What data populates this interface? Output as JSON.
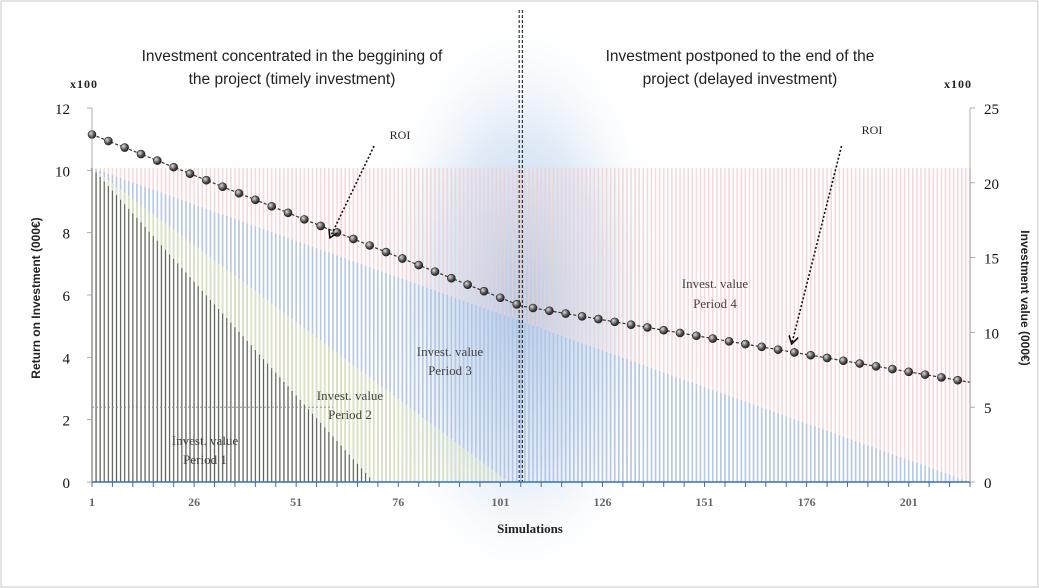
{
  "chart_data": {
    "type": "bar",
    "headings": {
      "left": [
        "Investment concentrated in the beggining of",
        "the project (timely investment)"
      ],
      "right": [
        "Investment postponed to the end of the",
        "project (delayed investment)"
      ]
    },
    "xlabel": "Simulations",
    "ylabel_left": "Return on Investment (000€)",
    "ylabel_right": "Investment value (000€)",
    "multiplier_left": "x100",
    "multiplier_right": "x100",
    "x_ticks": [
      1,
      26,
      51,
      76,
      101,
      126,
      151,
      176,
      201
    ],
    "xlim": [
      1,
      216
    ],
    "y_left_ticks": [
      0,
      2,
      4,
      6,
      8,
      10,
      12
    ],
    "y_left_range": [
      0,
      12
    ],
    "y_right_ticks": [
      0,
      5,
      10,
      15,
      20,
      25
    ],
    "y_right_range": [
      0,
      25
    ],
    "divider_x": 106,
    "grid": false,
    "series": [
      {
        "name": "ROI",
        "axis": "left",
        "kind": "line-markers",
        "x_start": 1,
        "x_end": 216,
        "step": 4,
        "y_start": 11.15,
        "y_mid": 5.65,
        "x_mid": 106,
        "y_end": 3.2,
        "color": "#333333"
      },
      {
        "name": "Invest. value Period 1",
        "axis": "right",
        "kind": "bars",
        "x_start": 1,
        "x_end": 70,
        "y_start": 21,
        "y_end": 0,
        "color": "#555555"
      },
      {
        "name": "Invest. value Period 2",
        "axis": "right",
        "kind": "bars",
        "x_start": 1,
        "x_end": 103,
        "y_start": 21,
        "y_end": 0,
        "color": "#dde6b8"
      },
      {
        "name": "Invest. value Period 3",
        "axis": "right",
        "kind": "bars",
        "x_start": 1,
        "x_end": 216,
        "y_start": 21,
        "y_end": 0,
        "color": "#9fc2e8"
      },
      {
        "name": "Invest. value Period 4",
        "axis": "right",
        "kind": "bars",
        "x_start": 1,
        "x_end": 216,
        "y_start": 21,
        "y_end": 21,
        "color": "#f3cccc"
      }
    ],
    "annotations": [
      {
        "text": "ROI",
        "x": 73,
        "y": 11.1,
        "arrow_to": [
          58,
          7.7
        ]
      },
      {
        "text": "ROI",
        "x": 186,
        "y": 11.1,
        "arrow_to": [
          171,
          4.3
        ]
      }
    ],
    "region_labels": [
      {
        "lines": [
          "Invest. value",
          "Period 1"
        ],
        "x": 22,
        "y": 1.3
      },
      {
        "lines": [
          "Invest. value",
          "Period 2"
        ],
        "x": 69,
        "y": 2.45
      },
      {
        "lines": [
          "Invest. value",
          "Period 3"
        ],
        "x": 93,
        "y": 3.75
      },
      {
        "lines": [
          "Invest. value",
          "Period 4"
        ],
        "x": 179,
        "y": 5.9
      }
    ]
  }
}
